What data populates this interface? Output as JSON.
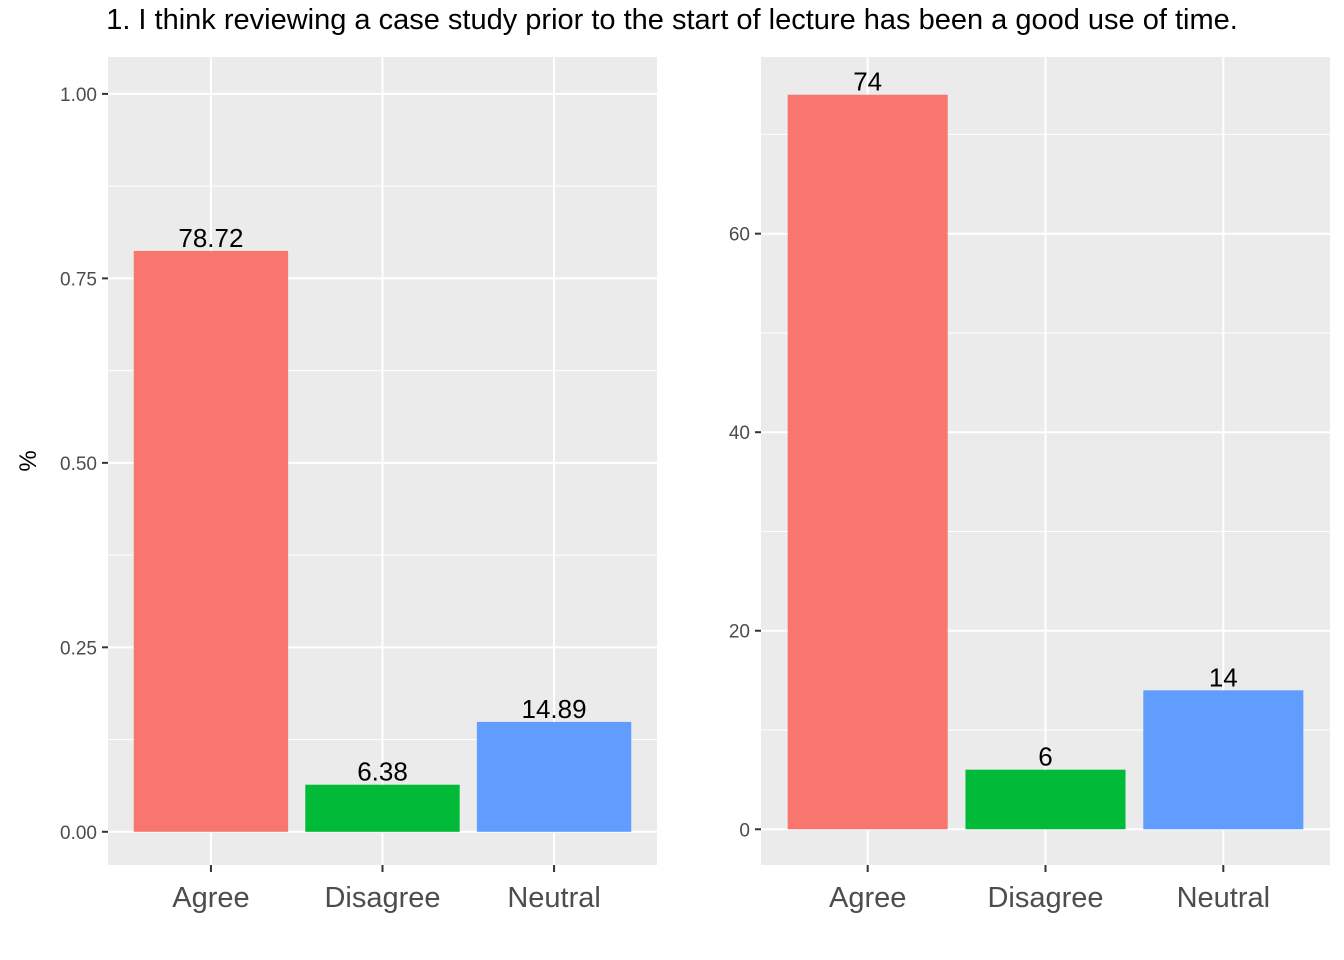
{
  "title": "1. I think reviewing a case study prior to the start of lecture has been a good use of time.",
  "chart_data": [
    {
      "type": "bar",
      "title": "",
      "xlabel": "",
      "ylabel": "%",
      "categories": [
        "Agree",
        "Disagree",
        "Neutral"
      ],
      "values": [
        0.7872,
        0.0638,
        0.1489
      ],
      "data_labels": [
        "78.72",
        "6.38",
        "14.89"
      ],
      "colors": [
        "#F8766D",
        "#00BA38",
        "#619CFF"
      ],
      "ylim": [
        -0.045,
        1.05
      ],
      "yticks": [
        0.0,
        0.25,
        0.5,
        0.75,
        1.0
      ],
      "ytick_labels": [
        "0.00",
        "0.25",
        "0.50",
        "0.75",
        "1.00"
      ],
      "grid": true,
      "panel_background": "#EBEBEB"
    },
    {
      "type": "bar",
      "title": "",
      "xlabel": "",
      "ylabel": "",
      "categories": [
        "Agree",
        "Disagree",
        "Neutral"
      ],
      "values": [
        74,
        6,
        14
      ],
      "data_labels": [
        "74",
        "6",
        "14"
      ],
      "colors": [
        "#F8766D",
        "#00BA38",
        "#619CFF"
      ],
      "ylim": [
        -3.6,
        77.8
      ],
      "yticks": [
        0,
        20,
        40,
        60
      ],
      "ytick_labels": [
        "0",
        "20",
        "40",
        "60"
      ],
      "grid": true,
      "panel_background": "#EBEBEB"
    }
  ]
}
